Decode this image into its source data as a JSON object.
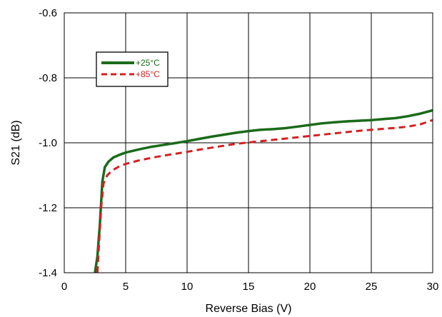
{
  "chart_data": {
    "type": "line",
    "title": "",
    "xlabel": "Reverse Bias (V)",
    "ylabel": "S21 (dB)",
    "xlim": [
      0,
      30
    ],
    "ylim": [
      -1.4,
      -0.6
    ],
    "x_ticks": [
      0,
      5,
      10,
      15,
      20,
      25,
      30
    ],
    "y_ticks": [
      -1.4,
      -1.2,
      -1.0,
      -0.8,
      -0.6
    ],
    "x_tick_labels": [
      "0",
      "5",
      "10",
      "15",
      "20",
      "25",
      "30"
    ],
    "y_tick_labels": [
      "-1.4",
      "-1.2",
      "-1.0",
      "-0.8",
      "-0.6"
    ],
    "grid": true,
    "legend_position": "top-left",
    "series": [
      {
        "name": "+25°C",
        "color": "#1a6b1a",
        "style": "solid",
        "x": [
          2.5,
          2.7,
          2.9,
          3.1,
          3.3,
          3.6,
          4.0,
          4.5,
          5.0,
          6.0,
          7.0,
          8.0,
          9.0,
          10.0,
          11.0,
          12.0,
          13.0,
          14.0,
          15.0,
          16.0,
          17.0,
          18.0,
          19.0,
          20.0,
          21.0,
          22.0,
          23.0,
          24.0,
          25.0,
          26.0,
          27.0,
          28.0,
          29.0,
          30.0
        ],
        "y": [
          -1.4,
          -1.35,
          -1.25,
          -1.12,
          -1.075,
          -1.058,
          -1.045,
          -1.037,
          -1.03,
          -1.021,
          -1.013,
          -1.007,
          -1.001,
          -0.995,
          -0.988,
          -0.981,
          -0.975,
          -0.969,
          -0.964,
          -0.96,
          -0.958,
          -0.955,
          -0.95,
          -0.945,
          -0.94,
          -0.937,
          -0.934,
          -0.932,
          -0.93,
          -0.927,
          -0.924,
          -0.918,
          -0.91,
          -0.9
        ]
      },
      {
        "name": "+85°C",
        "color": "#d42020",
        "style": "dashed",
        "x": [
          2.7,
          2.85,
          3.0,
          3.2,
          3.5,
          3.9,
          4.5,
          5.0,
          6.0,
          7.0,
          8.0,
          9.0,
          10.0,
          11.0,
          12.0,
          13.0,
          14.0,
          15.0,
          16.0,
          17.0,
          18.0,
          19.0,
          20.0,
          21.0,
          22.0,
          23.0,
          24.0,
          25.0,
          26.0,
          27.0,
          28.0,
          29.0,
          30.0
        ],
        "y": [
          -1.4,
          -1.3,
          -1.2,
          -1.125,
          -1.1,
          -1.085,
          -1.072,
          -1.065,
          -1.055,
          -1.047,
          -1.04,
          -1.034,
          -1.028,
          -1.021,
          -1.015,
          -1.009,
          -1.003,
          -0.999,
          -0.995,
          -0.991,
          -0.987,
          -0.983,
          -0.979,
          -0.975,
          -0.971,
          -0.967,
          -0.963,
          -0.96,
          -0.957,
          -0.954,
          -0.95,
          -0.943,
          -0.93
        ]
      }
    ]
  }
}
